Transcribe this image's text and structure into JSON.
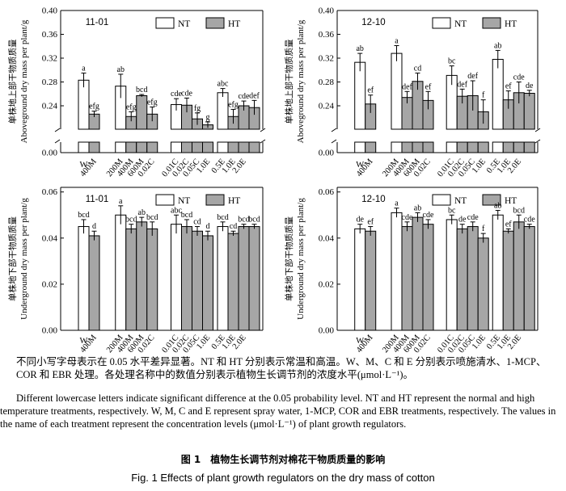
{
  "chart_data": [
    {
      "type": "bar",
      "panel_label": "11-01",
      "ylabel": "单株地上部干物质质量 Aboveground dry mass per plant/g",
      "ylabel_lines": [
        "单株地上部干物质质量",
        "Aboveground dry mass per plant/g"
      ],
      "yticks": [
        "0.00",
        "0.24",
        "0.28",
        "0.32",
        "0.36",
        "0.40"
      ],
      "axis_break": true,
      "ylim": [
        0.2,
        0.4
      ],
      "categories": [
        "W",
        "400M",
        "200M",
        "400M",
        "600M",
        "0.02C",
        "0.01C",
        "0.02C",
        "0.05C",
        "1.0E",
        "0.5E",
        "1.0E",
        "2.0E"
      ],
      "groups": [
        {
          "name": "W",
          "bars": [
            {
              "series": "NT",
              "value": 0.283,
              "err": 0.012,
              "letter": "a"
            },
            {
              "series": "HT",
              "value": 0.226,
              "err": 0.005,
              "letter": "efg"
            }
          ]
        },
        {
          "name": "M",
          "bars": [
            {
              "series": "NT",
              "value": 0.273,
              "err": 0.02,
              "letter": "ab"
            },
            {
              "series": "HT",
              "value": 0.222,
              "err": 0.008,
              "letter": "efg"
            },
            {
              "series": "HT",
              "value": 0.257,
              "err": 0.002,
              "letter": "bcd"
            },
            {
              "series": "HT",
              "value": 0.226,
              "err": 0.012,
              "letter": "efg"
            }
          ]
        },
        {
          "name": "C",
          "bars": [
            {
              "series": "NT",
              "value": 0.242,
              "err": 0.01,
              "letter": "cde"
            },
            {
              "series": "HT",
              "value": 0.241,
              "err": 0.012,
              "letter": "cde"
            },
            {
              "series": "HT",
              "value": 0.218,
              "err": 0.01,
              "letter": "fg"
            },
            {
              "series": "HT",
              "value": 0.208,
              "err": 0.005,
              "letter": "g"
            }
          ]
        },
        {
          "name": "E",
          "bars": [
            {
              "series": "NT",
              "value": 0.262,
              "err": 0.007,
              "letter": "abc"
            },
            {
              "series": "HT",
              "value": 0.222,
              "err": 0.012,
              "letter": "efg"
            },
            {
              "series": "HT",
              "value": 0.24,
              "err": 0.008,
              "letter": "cde"
            },
            {
              "series": "HT",
              "value": 0.237,
              "err": 0.012,
              "letter": "def"
            }
          ]
        }
      ],
      "legend": [
        "NT",
        "HT"
      ]
    },
    {
      "type": "bar",
      "panel_label": "12-10",
      "ylabel": "单株地上部干物质质量 Aboveground dry mass per plant/g",
      "ylabel_lines": [
        "单株地上部干物质质量",
        "Aboveground dry mass per plant/g"
      ],
      "yticks": [
        "0.00",
        "0.24",
        "0.28",
        "0.32",
        "0.36",
        "0.40"
      ],
      "axis_break": true,
      "ylim": [
        0.2,
        0.4
      ],
      "categories": [
        "W",
        "400M",
        "200M",
        "400M",
        "600M",
        "0.02C",
        "0.01C",
        "0.02C",
        "0.05C",
        "1.0E",
        "0.5E",
        "1.0E",
        "2.0E"
      ],
      "groups": [
        {
          "name": "W",
          "bars": [
            {
              "series": "NT",
              "value": 0.313,
              "err": 0.015,
              "letter": "ab"
            },
            {
              "series": "HT",
              "value": 0.243,
              "err": 0.015,
              "letter": "ef"
            }
          ]
        },
        {
          "name": "M",
          "bars": [
            {
              "series": "NT",
              "value": 0.328,
              "err": 0.013,
              "letter": "a"
            },
            {
              "series": "HT",
              "value": 0.254,
              "err": 0.01,
              "letter": "def"
            },
            {
              "series": "HT",
              "value": 0.281,
              "err": 0.014,
              "letter": "cd"
            },
            {
              "series": "HT",
              "value": 0.249,
              "err": 0.015,
              "letter": "ef"
            }
          ]
        },
        {
          "name": "C",
          "bars": [
            {
              "series": "NT",
              "value": 0.291,
              "err": 0.016,
              "letter": "bc"
            },
            {
              "series": "HT",
              "value": 0.256,
              "err": 0.012,
              "letter": "def"
            },
            {
              "series": "HT",
              "value": 0.257,
              "err": 0.025,
              "letter": "def"
            },
            {
              "series": "HT",
              "value": 0.23,
              "err": 0.02,
              "letter": "f"
            }
          ]
        },
        {
          "name": "E",
          "bars": [
            {
              "series": "NT",
              "value": 0.318,
              "err": 0.015,
              "letter": "ab"
            },
            {
              "series": "HT",
              "value": 0.25,
              "err": 0.015,
              "letter": "ef"
            },
            {
              "series": "HT",
              "value": 0.262,
              "err": 0.018,
              "letter": "cde"
            },
            {
              "series": "HT",
              "value": 0.261,
              "err": 0.005,
              "letter": "de"
            }
          ]
        }
      ],
      "legend": [
        "NT",
        "HT"
      ]
    },
    {
      "type": "bar",
      "panel_label": "11-01",
      "ylabel": "单株地下部干物质质量 Underground dry mass per plant/g",
      "ylabel_lines": [
        "单株地下部干物质质量",
        "Underground dry mass per plant/g"
      ],
      "yticks": [
        "0.00",
        "0.02",
        "0.04",
        "0.06"
      ],
      "axis_break": false,
      "ylim": [
        0,
        0.062
      ],
      "categories": [
        "W",
        "400M",
        "200M",
        "400M",
        "600M",
        "0.02C",
        "0.01C",
        "0.02C",
        "0.05C",
        "1.0E",
        "0.5E",
        "1.0E",
        "2.0E"
      ],
      "groups": [
        {
          "name": "W",
          "bars": [
            {
              "series": "NT",
              "value": 0.045,
              "err": 0.003,
              "letter": "bcd"
            },
            {
              "series": "HT",
              "value": 0.041,
              "err": 0.002,
              "letter": "d"
            }
          ]
        },
        {
          "name": "M",
          "bars": [
            {
              "series": "NT",
              "value": 0.05,
              "err": 0.004,
              "letter": "a"
            },
            {
              "series": "HT",
              "value": 0.044,
              "err": 0.002,
              "letter": "bcd"
            },
            {
              "series": "HT",
              "value": 0.047,
              "err": 0.002,
              "letter": "ab"
            },
            {
              "series": "HT",
              "value": 0.044,
              "err": 0.003,
              "letter": "bcd"
            }
          ]
        },
        {
          "name": "C",
          "bars": [
            {
              "series": "NT",
              "value": 0.046,
              "err": 0.004,
              "letter": "abc"
            },
            {
              "series": "HT",
              "value": 0.045,
              "err": 0.003,
              "letter": "bcd"
            },
            {
              "series": "HT",
              "value": 0.043,
              "err": 0.002,
              "letter": "cd"
            },
            {
              "series": "HT",
              "value": 0.041,
              "err": 0.002,
              "letter": "d"
            }
          ]
        },
        {
          "name": "E",
          "bars": [
            {
              "series": "NT",
              "value": 0.045,
              "err": 0.002,
              "letter": "bcd"
            },
            {
              "series": "HT",
              "value": 0.042,
              "err": 0.001,
              "letter": "cd"
            },
            {
              "series": "HT",
              "value": 0.045,
              "err": 0.001,
              "letter": "bcd"
            },
            {
              "series": "HT",
              "value": 0.045,
              "err": 0.001,
              "letter": "bcd"
            }
          ]
        }
      ],
      "legend": [
        "NT",
        "HT"
      ]
    },
    {
      "type": "bar",
      "panel_label": "12-10",
      "ylabel": "单株地下部干物质质量 Underground dry mass per plant/g",
      "ylabel_lines": [
        "单株地下部干物质质量",
        "Underground dry mass per plant/g"
      ],
      "yticks": [
        "0.00",
        "0.02",
        "0.04",
        "0.06"
      ],
      "axis_break": false,
      "ylim": [
        0,
        0.062
      ],
      "categories": [
        "W",
        "400M",
        "200M",
        "400M",
        "600M",
        "0.02C",
        "0.01C",
        "0.02C",
        "0.05C",
        "1.0E",
        "0.5E",
        "1.0E",
        "2.0E"
      ],
      "groups": [
        {
          "name": "W",
          "bars": [
            {
              "series": "NT",
              "value": 0.044,
              "err": 0.002,
              "letter": "de"
            },
            {
              "series": "HT",
              "value": 0.043,
              "err": 0.002,
              "letter": "ef"
            }
          ]
        },
        {
          "name": "M",
          "bars": [
            {
              "series": "NT",
              "value": 0.051,
              "err": 0.002,
              "letter": "a"
            },
            {
              "series": "HT",
              "value": 0.045,
              "err": 0.002,
              "letter": "cde"
            },
            {
              "series": "HT",
              "value": 0.049,
              "err": 0.002,
              "letter": "ab"
            },
            {
              "series": "HT",
              "value": 0.046,
              "err": 0.002,
              "letter": "cde"
            }
          ]
        },
        {
          "name": "C",
          "bars": [
            {
              "series": "NT",
              "value": 0.048,
              "err": 0.002,
              "letter": "bc"
            },
            {
              "series": "HT",
              "value": 0.044,
              "err": 0.002,
              "letter": "de"
            },
            {
              "series": "HT",
              "value": 0.045,
              "err": 0.002,
              "letter": "cde"
            },
            {
              "series": "HT",
              "value": 0.04,
              "err": 0.002,
              "letter": "f"
            }
          ]
        },
        {
          "name": "E",
          "bars": [
            {
              "series": "NT",
              "value": 0.05,
              "err": 0.002,
              "letter": "ab"
            },
            {
              "series": "HT",
              "value": 0.043,
              "err": 0.001,
              "letter": "ef"
            },
            {
              "series": "HT",
              "value": 0.047,
              "err": 0.003,
              "letter": "bcd"
            },
            {
              "series": "HT",
              "value": 0.045,
              "err": 0.001,
              "letter": "cde"
            }
          ]
        }
      ],
      "legend": [
        "NT",
        "HT"
      ]
    }
  ],
  "colors": {
    "NT": "#ffffff",
    "HT": "#a6a6a6",
    "axis": "#000000"
  },
  "caption": {
    "cn": "不同小写字母表示在 0.05 水平差异显著。NT 和 HT 分别表示常温和高温。W、M、C 和 E 分别表示喷施清水、1-MCP、COR 和 EBR 处理。各处理名称中的数值分别表示植物生长调节剂的浓度水平(μmol·L⁻¹)。",
    "en": "Different lowercase letters indicate significant difference at the 0.05 probability level. NT and HT represent the normal and high temperature treatments, respectively. W, M, C and E represent spray water, 1-MCP, COR and EBR treatments, respectively. The values in the name of each treatment represent the concentration levels (μmol·L⁻¹) of plant growth regulators."
  },
  "figure_title": {
    "cn": "图 1　植物生长调节剂对棉花干物质质量的影响",
    "en": "Fig. 1   Effects of plant growth regulators on the dry mass of cotton"
  }
}
